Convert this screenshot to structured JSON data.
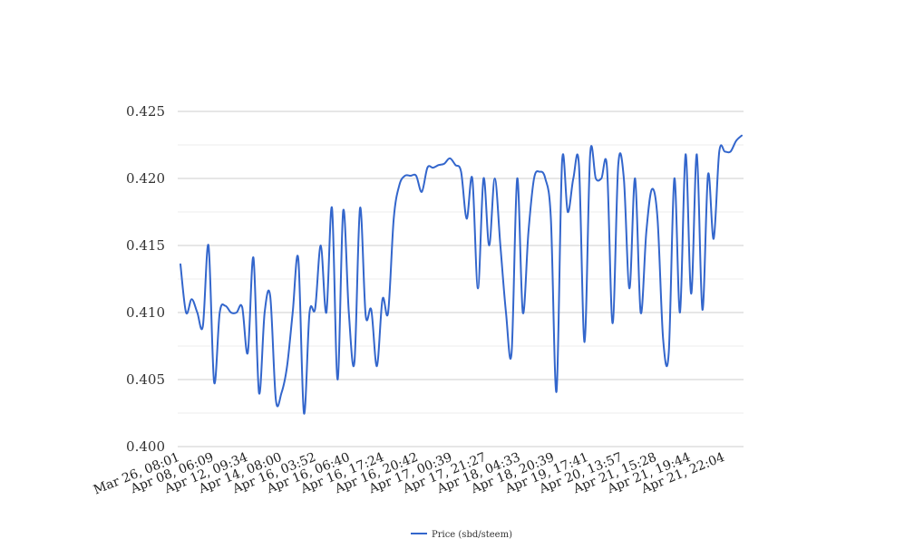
{
  "chart_data": {
    "type": "line",
    "title": "",
    "xlabel": "",
    "ylabel": "",
    "ylim": [
      0.4,
      0.425
    ],
    "y_ticks": [
      "0.400",
      "0.405",
      "0.410",
      "0.415",
      "0.420",
      "0.425"
    ],
    "x_tick_labels": [
      "Mar 26, 08:01",
      "Apr 08, 06:09",
      "Apr 12, 09:34",
      "Apr 14, 08:00",
      "Apr 16, 03:52",
      "Apr 16, 06:40",
      "Apr 16, 17:24",
      "Apr 16, 20:42",
      "Apr 17, 00:39",
      "Apr 17, 21:27",
      "Apr 18, 04:33",
      "Apr 18, 20:39",
      "Apr 19, 17:41",
      "Apr 20, 13:57",
      "Apr 21, 15:28",
      "Apr 21, 19:44",
      "Apr 21, 22:04"
    ],
    "grid": true,
    "legend_position": "bottom",
    "series": [
      {
        "name": "Price (sbd/steem)",
        "color": "#3366cc",
        "values": [
          0.4136,
          0.41,
          0.411,
          0.41,
          0.409,
          0.415,
          0.4048,
          0.41,
          0.4105,
          0.41,
          0.41,
          0.4104,
          0.407,
          0.4141,
          0.404,
          0.41,
          0.4112,
          0.4035,
          0.404,
          0.406,
          0.41,
          0.414,
          0.4025,
          0.41,
          0.4103,
          0.415,
          0.41,
          0.4178,
          0.405,
          0.4176,
          0.41,
          0.4063,
          0.4178,
          0.4098,
          0.4102,
          0.406,
          0.411,
          0.41,
          0.417,
          0.4195,
          0.4202,
          0.4202,
          0.4202,
          0.419,
          0.4208,
          0.4208,
          0.421,
          0.4211,
          0.4215,
          0.421,
          0.4205,
          0.417,
          0.42,
          0.4118,
          0.42,
          0.415,
          0.42,
          0.415,
          0.41,
          0.407,
          0.42,
          0.41,
          0.416,
          0.42,
          0.4205,
          0.42,
          0.417,
          0.4041,
          0.4213,
          0.4175,
          0.42,
          0.421,
          0.4078,
          0.4218,
          0.42,
          0.42,
          0.4208,
          0.4092,
          0.421,
          0.42,
          0.4118,
          0.42,
          0.41,
          0.416,
          0.4192,
          0.417,
          0.408,
          0.407,
          0.42,
          0.41,
          0.4218,
          0.4114,
          0.4218,
          0.4102,
          0.4203,
          0.4155,
          0.422,
          0.422,
          0.422,
          0.4228,
          0.4232
        ]
      }
    ]
  }
}
